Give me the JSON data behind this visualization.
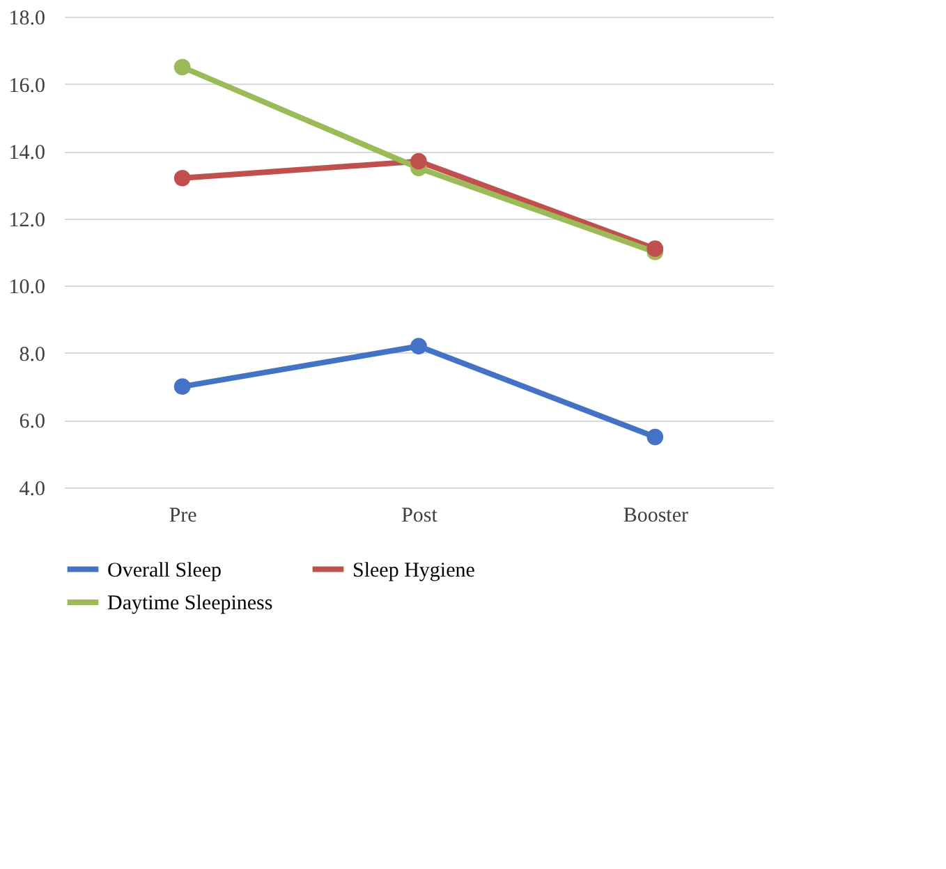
{
  "chart_data": {
    "type": "line",
    "categories": [
      "Pre",
      "Post",
      "Booster"
    ],
    "series": [
      {
        "name": "Overall Sleep",
        "color": "#4472c4",
        "values": [
          7.0,
          8.2,
          5.5
        ]
      },
      {
        "name": "Sleep Hygiene",
        "color": "#c0504d",
        "values": [
          13.2,
          13.7,
          11.1
        ]
      },
      {
        "name": "Daytime Sleepiness",
        "color": "#9bbb59",
        "values": [
          16.5,
          13.5,
          11.0
        ]
      }
    ],
    "ylim": [
      4,
      18
    ],
    "yticks": [
      {
        "value": 4,
        "label": "4.0"
      },
      {
        "value": 6,
        "label": "6.0"
      },
      {
        "value": 8,
        "label": "8.0"
      },
      {
        "value": 10,
        "label": "10.0"
      },
      {
        "value": 12,
        "label": "12.0"
      },
      {
        "value": 14,
        "label": "14.0"
      },
      {
        "value": 16,
        "label": "16.0"
      },
      {
        "value": 18,
        "label": "18.0"
      }
    ],
    "grid": "y",
    "legend": "bottom",
    "marker": "circle",
    "line_style": "solid"
  }
}
